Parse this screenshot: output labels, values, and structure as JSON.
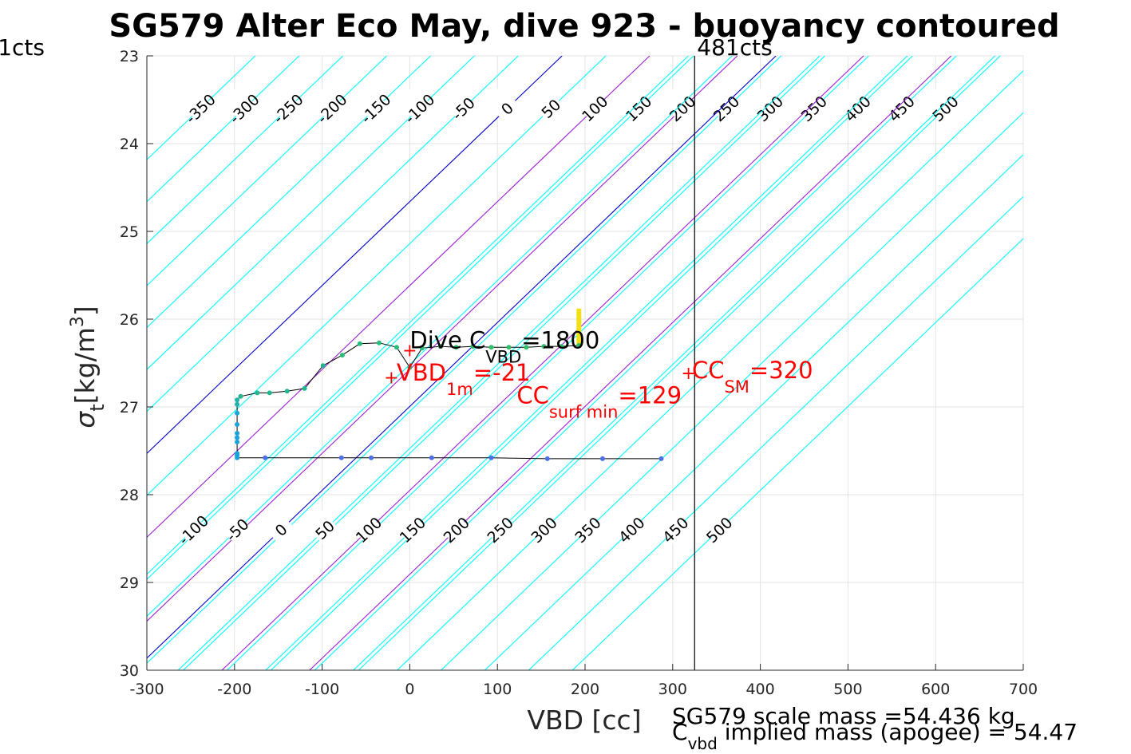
{
  "chart_data": {
    "type": "scatter",
    "title": "SG579 Alter Eco May, dive 923 - buoyancy contoured",
    "xlabel": "VBD [cc]",
    "ylabel": {
      "sym": "σ",
      "sub": "t",
      "unit": "[kg/m",
      "sup": "3",
      "close": "]"
    },
    "xlim": [
      -300,
      700
    ],
    "ylim": [
      23,
      30
    ],
    "y_reversed": true,
    "grid": true,
    "xticks": [
      -300,
      -200,
      -100,
      0,
      100,
      200,
      300,
      400,
      500,
      600,
      700
    ],
    "yticks": [
      23,
      24,
      25,
      26,
      27,
      28,
      29,
      30
    ],
    "contour_slope_cc_per_sigma": 104.6,
    "contours_upper": {
      "anchor_sigma": 23.6,
      "anchor_vbd_zero": 111,
      "levels": [
        -350,
        -300,
        -250,
        -200,
        -150,
        -100,
        -50,
        0,
        50,
        100,
        150,
        200,
        250,
        300,
        350,
        400,
        450,
        500
      ]
    },
    "contours_lower": {
      "anchor_sigma": 28.4,
      "anchor_vbd_zero": -147,
      "levels": [
        -100,
        -50,
        0,
        50,
        100,
        150,
        200,
        250,
        300,
        350,
        400,
        450,
        500
      ]
    },
    "contour_color": "#00ffff",
    "line_levels": [
      {
        "level": 0,
        "color": "#0000cd"
      },
      {
        "level": 100,
        "color": "#9b1fd6"
      },
      {
        "level": 200,
        "color": "#9b1fd6"
      }
    ],
    "vertical_line": {
      "vbd": 325,
      "label": "481cts"
    },
    "left_label": "1cts",
    "profile_line": [
      [
        287,
        27.59
      ],
      [
        220,
        27.59
      ],
      [
        157,
        27.59
      ],
      [
        93,
        27.58
      ],
      [
        25,
        27.58
      ],
      [
        -44,
        27.58
      ],
      [
        -78,
        27.58
      ],
      [
        -165,
        27.58
      ],
      [
        -197,
        27.58
      ],
      [
        -197,
        27.56
      ],
      [
        -197,
        27.4
      ],
      [
        -197,
        27.3
      ],
      [
        -197,
        27.07
      ],
      [
        -197,
        26.97
      ],
      [
        -197,
        26.92
      ],
      [
        -193,
        26.88
      ],
      [
        -174,
        26.84
      ],
      [
        -160,
        26.84
      ],
      [
        -140,
        26.82
      ],
      [
        -120,
        26.79
      ],
      [
        -99,
        26.53
      ],
      [
        -77,
        26.41
      ],
      [
        -57,
        26.28
      ],
      [
        -35,
        26.27
      ],
      [
        -15,
        26.32
      ],
      [
        0,
        26.55
      ],
      [
        14,
        26.33
      ],
      [
        35,
        26.31
      ],
      [
        53,
        26.32
      ],
      [
        72,
        26.31
      ],
      [
        93,
        26.32
      ],
      [
        113,
        26.32
      ],
      [
        133,
        26.32
      ],
      [
        153,
        26.31
      ],
      [
        173,
        26.31
      ],
      [
        193,
        26.3
      ]
    ],
    "profile_points": [
      {
        "vbd": 287,
        "sigma": 27.59,
        "color": "#4a6fe6"
      },
      {
        "vbd": 220,
        "sigma": 27.59,
        "color": "#4a6fe6"
      },
      {
        "vbd": 157,
        "sigma": 27.59,
        "color": "#4a6fe6"
      },
      {
        "vbd": 93,
        "sigma": 27.58,
        "color": "#4a6fe6"
      },
      {
        "vbd": 25,
        "sigma": 27.58,
        "color": "#4a6fe6"
      },
      {
        "vbd": -44,
        "sigma": 27.58,
        "color": "#4a6fe6"
      },
      {
        "vbd": -78,
        "sigma": 27.58,
        "color": "#4a6fe6"
      },
      {
        "vbd": -165,
        "sigma": 27.58,
        "color": "#4a6fe6"
      },
      {
        "vbd": -197,
        "sigma": 27.58,
        "color": "#1aa3d9"
      },
      {
        "vbd": -197,
        "sigma": 27.55,
        "color": "#1aa3d9"
      },
      {
        "vbd": -197,
        "sigma": 27.53,
        "color": "#1aa3d9"
      },
      {
        "vbd": -197,
        "sigma": 27.4,
        "color": "#1aa3d9"
      },
      {
        "vbd": -197,
        "sigma": 27.35,
        "color": "#1aa3d9"
      },
      {
        "vbd": -197,
        "sigma": 27.3,
        "color": "#1aa3d9"
      },
      {
        "vbd": -197,
        "sigma": 27.2,
        "color": "#1aa3d9"
      },
      {
        "vbd": -197,
        "sigma": 27.07,
        "color": "#1aa3d9"
      },
      {
        "vbd": -197,
        "sigma": 26.97,
        "color": "#20b2aa"
      },
      {
        "vbd": -197,
        "sigma": 26.92,
        "color": "#20b2aa"
      },
      {
        "vbd": -193,
        "sigma": 26.88,
        "color": "#22b58f"
      },
      {
        "vbd": -174,
        "sigma": 26.84,
        "color": "#22b58f"
      },
      {
        "vbd": -160,
        "sigma": 26.84,
        "color": "#22b58f"
      },
      {
        "vbd": -140,
        "sigma": 26.82,
        "color": "#22b58f"
      },
      {
        "vbd": -120,
        "sigma": 26.79,
        "color": "#22b58f"
      },
      {
        "vbd": -99,
        "sigma": 26.53,
        "color": "#22b58f"
      },
      {
        "vbd": -77,
        "sigma": 26.41,
        "color": "#26bd7a"
      },
      {
        "vbd": -57,
        "sigma": 26.28,
        "color": "#26bd7a"
      },
      {
        "vbd": -35,
        "sigma": 26.27,
        "color": "#26bd7a"
      },
      {
        "vbd": -15,
        "sigma": 26.32,
        "color": "#26bd7a"
      },
      {
        "vbd": 0,
        "sigma": 26.55,
        "color": "#26bd7a"
      },
      {
        "vbd": 14,
        "sigma": 26.33,
        "color": "#26bd7a"
      },
      {
        "vbd": 35,
        "sigma": 26.31,
        "color": "#2ec06a"
      },
      {
        "vbd": 53,
        "sigma": 26.32,
        "color": "#2ec06a"
      },
      {
        "vbd": 72,
        "sigma": 26.31,
        "color": "#2ec06a"
      },
      {
        "vbd": 93,
        "sigma": 26.32,
        "color": "#2ec06a"
      },
      {
        "vbd": 113,
        "sigma": 26.32,
        "color": "#2ec06a"
      },
      {
        "vbd": 133,
        "sigma": 26.32,
        "color": "#2ec06a"
      },
      {
        "vbd": 153,
        "sigma": 26.31,
        "color": "#2ec06a"
      },
      {
        "vbd": 173,
        "sigma": 26.31,
        "color": "#2ec06a"
      },
      {
        "vbd": 193,
        "sigma": 26.3,
        "color": "#2ec06a"
      }
    ],
    "surface_cluster": {
      "vbd": 193,
      "sigma_range": [
        25.88,
        26.3
      ],
      "color": "#f2e01a"
    },
    "markers": [
      {
        "vbd": 0,
        "sigma": 26.35,
        "color": "#ff0000"
      },
      {
        "vbd": -21,
        "sigma": 26.66,
        "color": "#ff0000"
      },
      {
        "vbd": 318,
        "sigma": 26.61,
        "color": "#ff0000"
      }
    ],
    "annotations": [
      {
        "vbd": 0,
        "sigma": 26.24,
        "text": "Dive C",
        "sub": "VBD",
        "tail": "=1800",
        "color": "#000000"
      },
      {
        "vbd": -15,
        "sigma": 26.61,
        "text": "VBD",
        "sub": "1m",
        "tail": "=-21",
        "color": "#ff0000"
      },
      {
        "vbd": 122,
        "sigma": 26.87,
        "text": "CC",
        "sub": "surf min",
        "tail": "=129",
        "color": "#ff0000"
      },
      {
        "vbd": 322,
        "sigma": 26.58,
        "text": "CC",
        "sub": "SM",
        "tail": "=320",
        "color": "#ff0000"
      }
    ],
    "footnotes": [
      {
        "text": "SG579 scale mass =54.436 kg"
      },
      {
        "text": "C",
        "sub": "vbd",
        "tail": " implied mass (apogee) = 54.47"
      }
    ]
  }
}
